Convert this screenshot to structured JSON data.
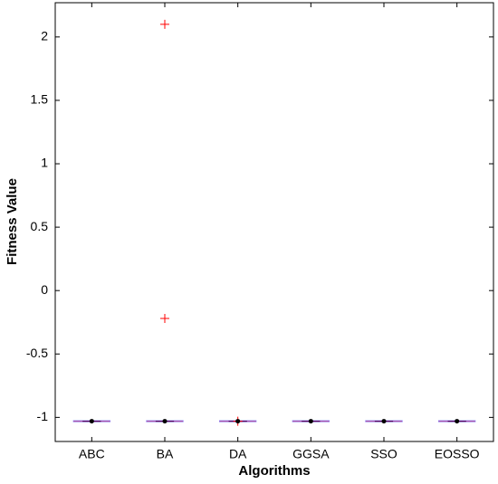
{
  "chart_data": {
    "type": "box",
    "xlabel": "Algorithms",
    "ylabel": "Fitness Value",
    "categories": [
      "ABC",
      "BA",
      "DA",
      "GGSA",
      "SSO",
      "EOSSO"
    ],
    "boxes": [
      {
        "whislo": -1.03,
        "q1": -1.03,
        "median": -1.03,
        "q3": -1.03,
        "whishi": -1.03,
        "fliers": [],
        "mean": -1.03
      },
      {
        "whislo": -1.03,
        "q1": -1.03,
        "median": -1.03,
        "q3": -1.03,
        "whishi": -1.03,
        "fliers": [
          2.1,
          -0.22
        ],
        "mean": -1.03
      },
      {
        "whislo": -1.03,
        "q1": -1.03,
        "median": -1.03,
        "q3": -1.03,
        "whishi": -1.03,
        "fliers": [
          -1.03
        ],
        "mean": -1.03
      },
      {
        "whislo": -1.03,
        "q1": -1.03,
        "median": -1.03,
        "q3": -1.03,
        "whishi": -1.03,
        "fliers": [],
        "mean": -1.03
      },
      {
        "whislo": -1.03,
        "q1": -1.03,
        "median": -1.03,
        "q3": -1.03,
        "whishi": -1.03,
        "fliers": [],
        "mean": -1.03
      },
      {
        "whislo": -1.03,
        "q1": -1.03,
        "median": -1.03,
        "q3": -1.03,
        "whishi": -1.03,
        "fliers": [],
        "mean": -1.03
      }
    ],
    "box_color": "#0000ff",
    "median_color": "#ff0000",
    "flier_color": "#ff0000",
    "mean_color": "#000000",
    "ylim": [
      -1.19,
      2.27
    ],
    "yticks": [
      -1,
      -0.5,
      0,
      0.5,
      1,
      1.5,
      2
    ]
  }
}
